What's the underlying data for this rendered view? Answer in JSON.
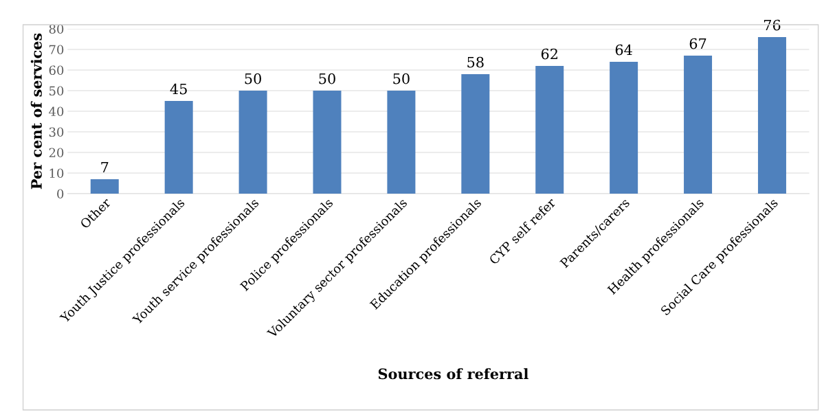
{
  "chart_data": {
    "type": "bar",
    "categories": [
      "Other",
      "Youth Justice professionals",
      "Youth service professionals",
      "Police professionals",
      "Voluntary sector professionals",
      "Education professionals",
      "CYP self refer",
      "Parents/carers",
      "Health professionals",
      "Social Care professionals"
    ],
    "values": [
      7,
      45,
      50,
      50,
      50,
      58,
      62,
      64,
      67,
      76
    ],
    "color": "#4f81bd",
    "xlabel": "Sources of referral",
    "ylabel": "Per cent of services",
    "ylim": [
      0,
      80
    ],
    "yticks": [
      0,
      10,
      20,
      30,
      40,
      50,
      60,
      70,
      80
    ],
    "grid": "y",
    "data_labels": true
  }
}
